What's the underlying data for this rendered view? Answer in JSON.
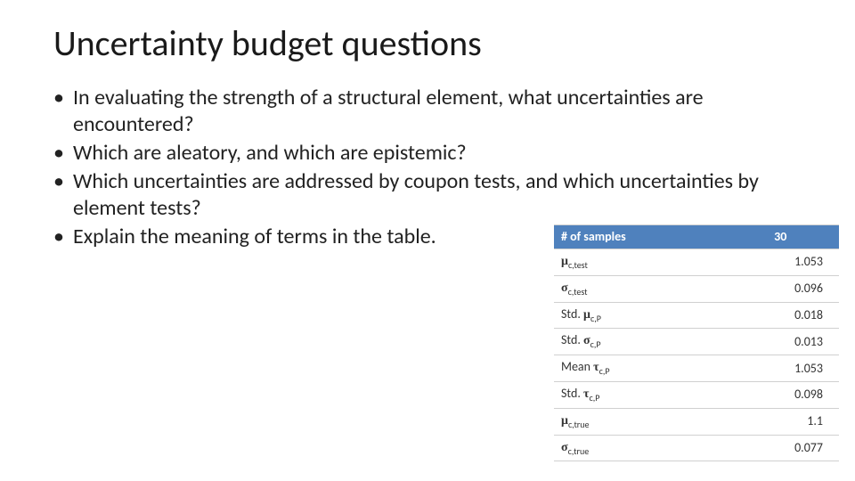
{
  "title": "Uncertainty budget questions",
  "bullets": [
    "In evaluating the strength of a structural element, what uncertainties are encountered?",
    "Which are aleatory, and which are epistemic?",
    "Which uncertainties are addressed by coupon tests, and which uncertainties by element tests?",
    "Explain the meaning of terms in the table."
  ],
  "table": {
    "header": {
      "label": "# of samples",
      "value": "30"
    },
    "rows": [
      {
        "label_html": "<span class='sym bold'>μ</span><span class='sub'>c,test</span>",
        "value": "1.053",
        "red": false
      },
      {
        "label_html": "<span class='sym bold'>σ</span><span class='sub'>c,test</span>",
        "value": "0.096",
        "red": false
      },
      {
        "label_html": "Std. <span class='sym bold'>μ</span><span class='sub'>c,P</span>",
        "value": "0.018",
        "red": false
      },
      {
        "label_html": "Std. <span class='sym bold'>σ</span><span class='sub'>c,P</span>",
        "value": "0.013",
        "red": false
      },
      {
        "label_html": "Mean <span class='sym bold'>τ</span><span class='sub'>c,P</span>",
        "value": "1.053",
        "red": true
      },
      {
        "label_html": "Std. <span class='sym bold'>τ</span><span class='sub'>c,P</span>",
        "value": "0.098",
        "red": true
      },
      {
        "label_html": "<span class='sym bold'>μ</span><span class='sub'>c,true</span>",
        "value": "1.1",
        "red": false
      },
      {
        "label_html": "<span class='sym bold'>σ</span><span class='sub'>c,true</span>",
        "value": "0.077",
        "red": false
      }
    ],
    "colors": {
      "header_bg": "#4f81bd",
      "header_fg": "#ffffff",
      "row_border": "#d0d0d0",
      "text": "#333333",
      "red": "#c0392b"
    },
    "font_sizes": {
      "title": 40,
      "body": 24,
      "table": 14,
      "sub": 10
    }
  }
}
